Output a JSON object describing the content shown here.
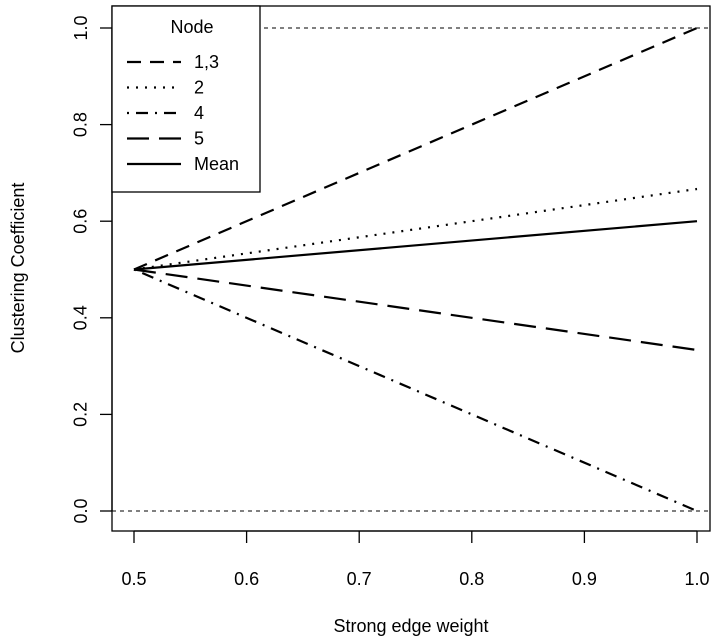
{
  "chart_data": {
    "type": "line",
    "xlabel": "Strong edge weight",
    "ylabel": "Clustering Coefficient",
    "xlim": [
      0.5,
      1.0
    ],
    "ylim": [
      0.0,
      1.0
    ],
    "x_ticks": [
      "0.5",
      "0.6",
      "0.7",
      "0.8",
      "0.9",
      "1.0"
    ],
    "y_ticks": [
      "0.0",
      "0.2",
      "0.4",
      "0.6",
      "0.8",
      "1.0"
    ],
    "grid": false,
    "reference_lines": [
      0.0,
      1.0
    ],
    "legend": {
      "title": "Node",
      "placement": "top-left"
    },
    "x": [
      0.5,
      1.0
    ],
    "series": [
      {
        "name": "1,3",
        "values": [
          0.5,
          1.0
        ],
        "linestyle": "dashed"
      },
      {
        "name": "2",
        "values": [
          0.5,
          0.6667
        ],
        "linestyle": "dotted"
      },
      {
        "name": "4",
        "values": [
          0.5,
          0.0
        ],
        "linestyle": "dotdash"
      },
      {
        "name": "5",
        "values": [
          0.5,
          0.3333
        ],
        "linestyle": "longdash"
      },
      {
        "name": "Mean",
        "values": [
          0.5,
          0.6
        ],
        "linestyle": "solid"
      }
    ],
    "colors": {
      "line": "#000000",
      "background": "#ffffff"
    }
  }
}
